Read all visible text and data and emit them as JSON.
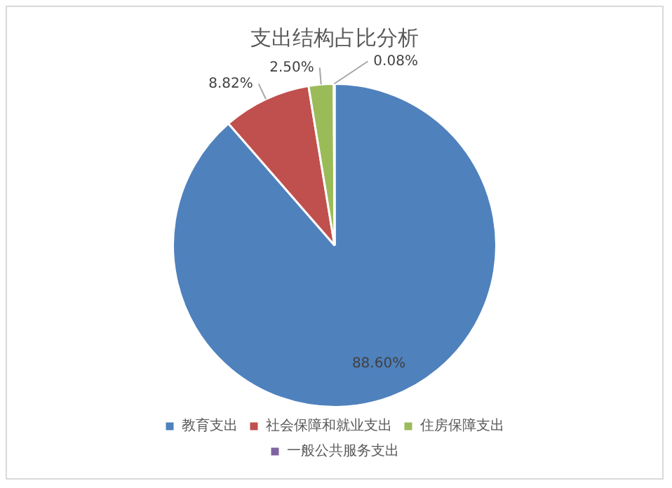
{
  "chart_data": {
    "type": "pie",
    "title": "支出结构占比分析",
    "categories": [
      "教育支出",
      "社会保障和就业支出",
      "住房保障支出",
      "一般公共服务支出"
    ],
    "values": [
      88.6,
      8.82,
      2.5,
      0.08
    ],
    "colors": [
      "#4f81bd",
      "#c0504d",
      "#9bbb59",
      "#8064a2"
    ],
    "value_labels": [
      "88.60%",
      "8.82%",
      "2.50%",
      "0.08%"
    ],
    "legend": "bottom"
  }
}
